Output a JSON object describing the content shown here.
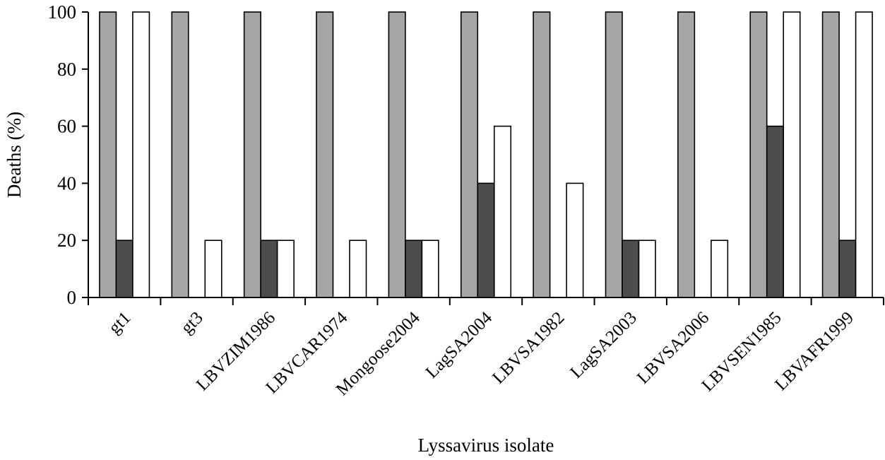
{
  "chart_data": {
    "type": "bar",
    "xlabel": "Lyssavirus isolate",
    "ylabel": "Deaths (%)",
    "ylim": [
      0,
      100
    ],
    "yticks": [
      0,
      20,
      40,
      60,
      80,
      100
    ],
    "grid": false,
    "categories": [
      "gt1",
      "gt3",
      "LBVZIM1986",
      "LBVCAR1974",
      "Mongoose2004",
      "LagSA2004",
      "LBVSA1982",
      "LagSA2003",
      "LBVSA2006",
      "LBVSEN1985",
      "LBVAFR1999"
    ],
    "series": [
      {
        "color": "#a6a6a6",
        "values": [
          100,
          100,
          100,
          100,
          100,
          100,
          100,
          100,
          100,
          100,
          100
        ]
      },
      {
        "color": "#4d4d4d",
        "values": [
          20,
          0,
          20,
          0,
          20,
          40,
          0,
          20,
          0,
          60,
          20
        ]
      },
      {
        "color": "#ffffff",
        "values": [
          100,
          20,
          20,
          20,
          20,
          60,
          40,
          20,
          20,
          100,
          100
        ]
      }
    ]
  }
}
